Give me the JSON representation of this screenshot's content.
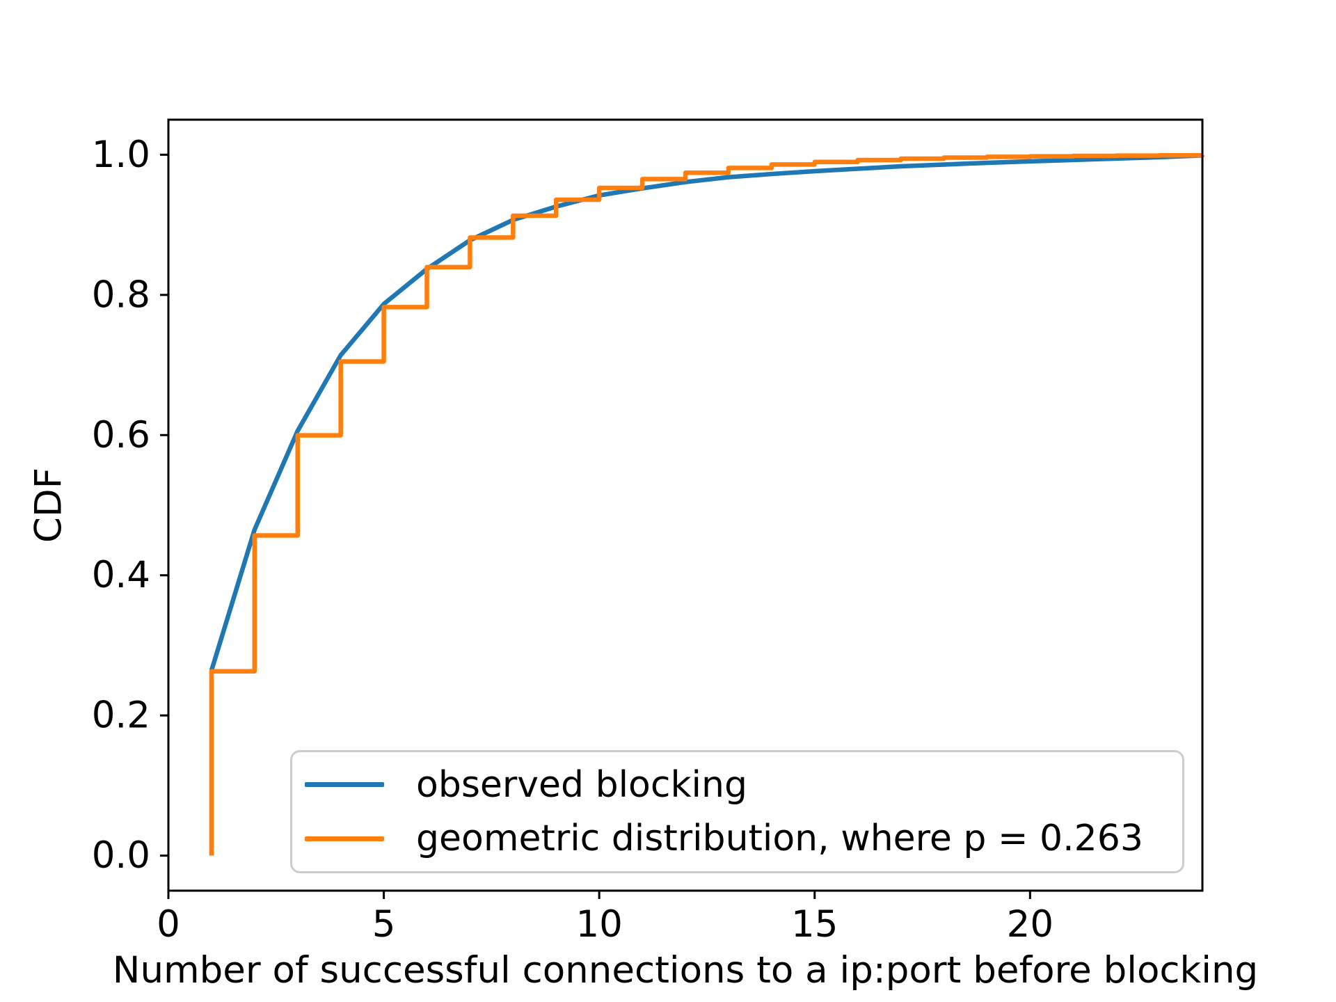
{
  "figure": {
    "kind": "matplotlib-style cdf plot",
    "background_color": "#ffffff",
    "spine_color": "#000000"
  },
  "chart_data": {
    "type": "line",
    "title": "",
    "xlabel": "Number of successful connections to a ip:port before blocking",
    "ylabel": "CDF",
    "xlim": [
      0,
      24
    ],
    "ylim": [
      -0.05,
      1.05
    ],
    "grid": false,
    "legend_position": "lower center inside axes",
    "x_ticks": {
      "values": [
        0,
        5,
        10,
        15,
        20
      ],
      "labels": [
        "0",
        "5",
        "10",
        "15",
        "20"
      ]
    },
    "y_ticks": {
      "values": [
        0.0,
        0.2,
        0.4,
        0.6,
        0.8,
        1.0
      ],
      "labels": [
        "0.0",
        "0.2",
        "0.4",
        "0.6",
        "0.8",
        "1.0"
      ]
    },
    "x": [
      1,
      2,
      3,
      4,
      5,
      6,
      7,
      8,
      9,
      10,
      11,
      12,
      13,
      14,
      15,
      16,
      17,
      18,
      19,
      20,
      21,
      22,
      23,
      24
    ],
    "series": [
      {
        "name": "observed blocking",
        "color": "#1f77b4",
        "line_style": "linear",
        "values": [
          0.264,
          0.465,
          0.606,
          0.714,
          0.787,
          0.837,
          0.878,
          0.907,
          0.926,
          0.942,
          0.952,
          0.961,
          0.968,
          0.9725,
          0.9765,
          0.98,
          0.9835,
          0.986,
          0.9885,
          0.9905,
          0.9925,
          0.9945,
          0.9965,
          0.999
        ]
      },
      {
        "name": "geometric distribution, where p = 0.263",
        "color": "#ff7f0e",
        "line_style": "step-post",
        "p": 0.263,
        "baseline_start": 0.0,
        "values": [
          0.263,
          0.4568,
          0.5997,
          0.705,
          0.7826,
          0.8397,
          0.8819,
          0.913,
          0.9358,
          0.9527,
          0.9652,
          0.9743,
          0.9811,
          0.9861,
          0.9897,
          0.9924,
          0.9944,
          0.9959,
          0.997,
          0.9978,
          0.9984,
          0.9988,
          0.9991,
          0.9993
        ]
      }
    ]
  }
}
